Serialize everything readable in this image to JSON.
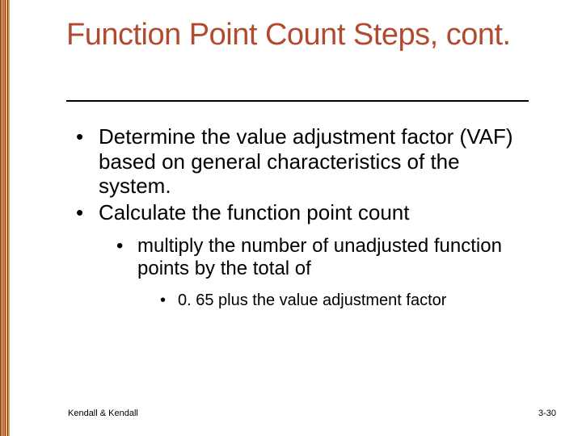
{
  "title_color": "#b24a30",
  "title": "Function Point Count Steps, cont.",
  "bullets_lvl1": [
    "Determine the value adjustment factor (VAF) based on general characteristics of the system.",
    "Calculate the function point count"
  ],
  "bullets_lvl2": [
    "multiply the number of unadjusted function points by the total of"
  ],
  "bullets_lvl3": [
    "0. 65 plus the value adjustment factor"
  ],
  "footer": {
    "left": "Kendall & Kendall",
    "right": "3-30"
  },
  "styling": {
    "background_color": "#ffffff",
    "rule_color": "#000000",
    "body_text_color": "#000000",
    "font_family": "Verdana",
    "title_fontsize": 38,
    "lvl1_fontsize": 26,
    "lvl2_fontsize": 24,
    "lvl3_fontsize": 20,
    "footer_fontsize": 11,
    "slide_width": 720,
    "slide_height": 540
  }
}
